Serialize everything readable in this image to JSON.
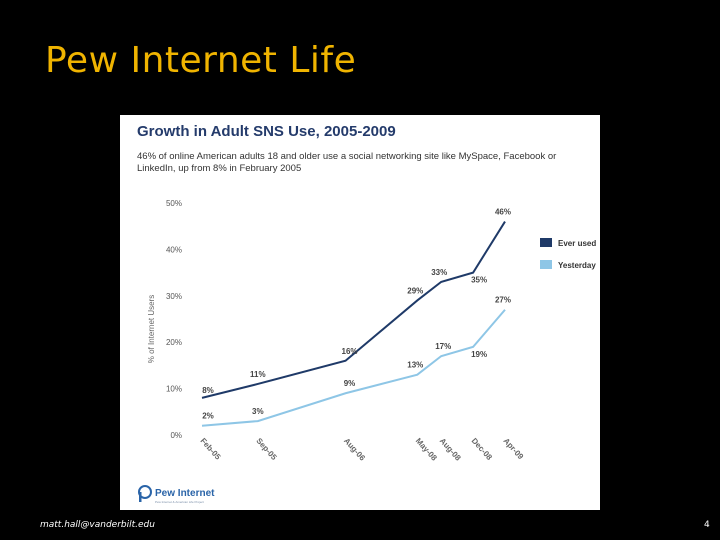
{
  "slide": {
    "title": "Pew Internet Life",
    "footer_email": "matt.hall@vanderbilt.edu",
    "page_number": "4"
  },
  "colors": {
    "background": "#000000",
    "title": "#f0b400",
    "ever_used": "#1f3a68",
    "yesterday": "#8ec6e6"
  },
  "logo": {
    "text": "Pew Internet",
    "subtitle": "Pew Internet & American Life Project"
  },
  "chart_data": {
    "type": "line",
    "title": "Growth in Adult SNS Use, 2005-2009",
    "subtitle": "46% of online American adults 18 and older use a social networking site like MySpace, Facebook or LinkedIn, up from 8% in February 2005",
    "ylabel": "% of Internet Users",
    "ylim": [
      0,
      50
    ],
    "yticks": [
      "0%",
      "10%",
      "20%",
      "30%",
      "40%",
      "50%"
    ],
    "categories": [
      "Feb-05",
      "Sep-05",
      "Aug-06",
      "May-08",
      "Aug-08",
      "Dec-08",
      "Apr-09"
    ],
    "x": [
      0,
      7,
      18,
      27,
      30,
      34,
      38
    ],
    "series": [
      {
        "name": "Ever used",
        "values": [
          8,
          11,
          16,
          29,
          33,
          35,
          46
        ],
        "labels": [
          "8%",
          "11%",
          "16%",
          "29%",
          "33%",
          "35%",
          "46%"
        ]
      },
      {
        "name": "Yesterday",
        "values": [
          2,
          3,
          9,
          13,
          17,
          19,
          27
        ],
        "labels": [
          "2%",
          "3%",
          "9%",
          "13%",
          "17%",
          "19%",
          "27%"
        ]
      }
    ],
    "legend": "right"
  }
}
